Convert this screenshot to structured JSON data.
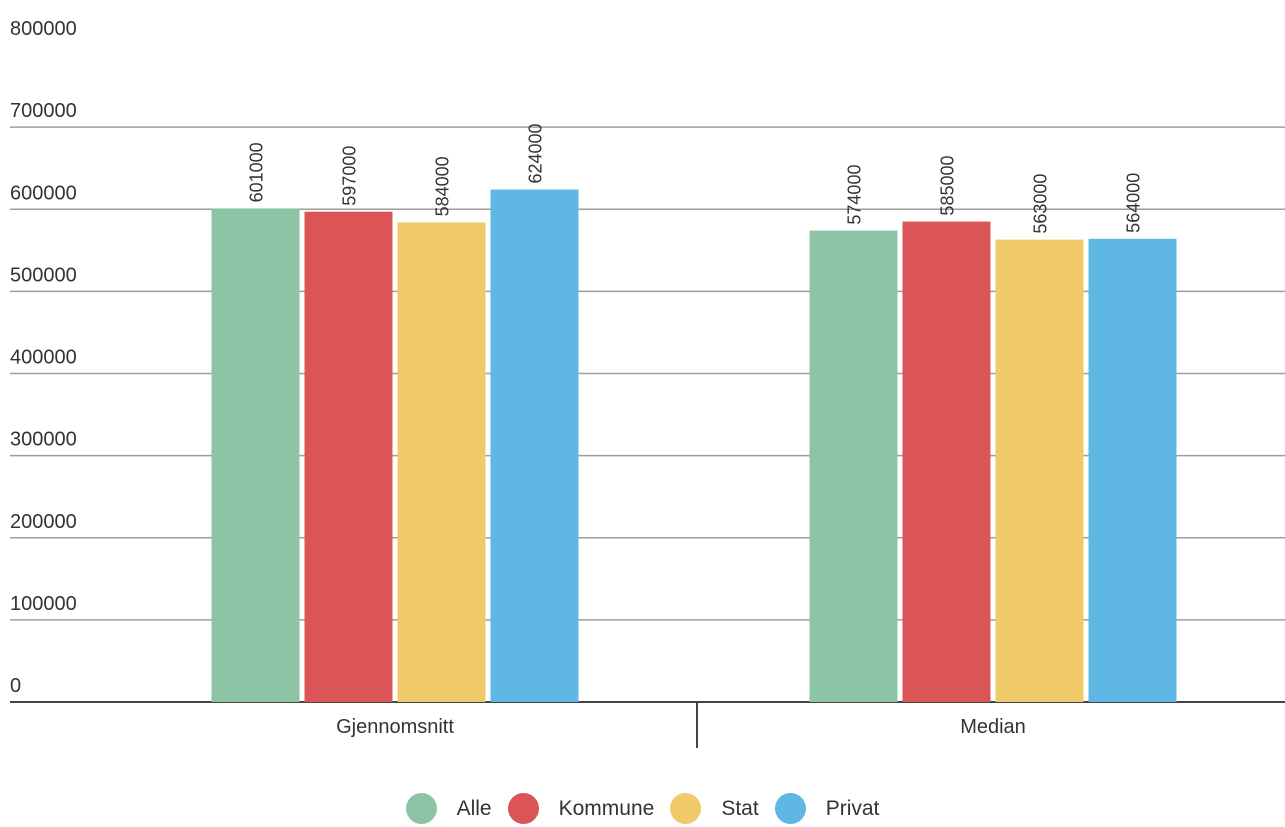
{
  "chart_data": {
    "type": "bar",
    "categories": [
      "Gjennomsnitt",
      "Median"
    ],
    "series": [
      {
        "name": "Alle",
        "color": "#8ec4a6",
        "values": [
          601000,
          574000
        ]
      },
      {
        "name": "Kommune",
        "color": "#db5456",
        "values": [
          597000,
          585000
        ]
      },
      {
        "name": "Stat",
        "color": "#efc96a",
        "values": [
          584000,
          563000
        ]
      },
      {
        "name": "Privat",
        "color": "#5fb7e4",
        "values": [
          624000,
          564000
        ]
      }
    ],
    "ylim": [
      0,
      800000
    ],
    "yticks": [
      "0",
      "100000",
      "200000",
      "300000",
      "400000",
      "500000",
      "600000",
      "700000",
      "800000"
    ],
    "grid": true,
    "legend_position": "bottom",
    "data_labels": true
  }
}
